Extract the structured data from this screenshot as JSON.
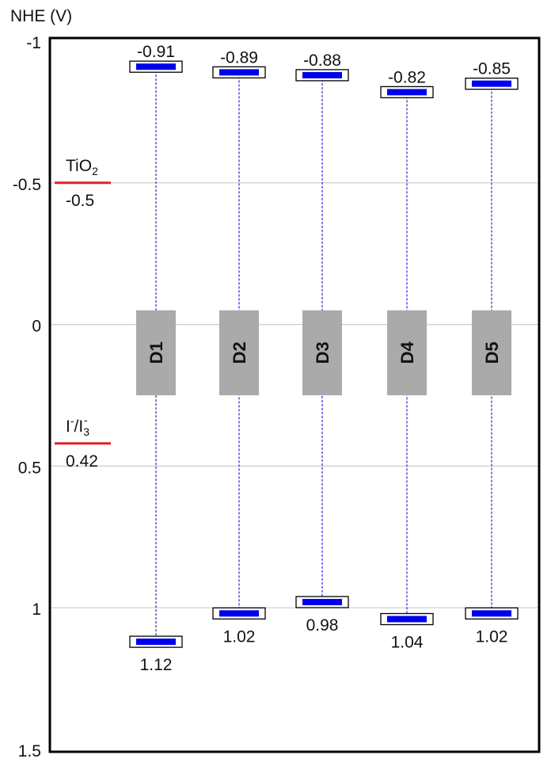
{
  "chart_data": {
    "type": "energy-level diagram",
    "ylabel": "NHE (V)",
    "ylim": [
      -1,
      1.5
    ],
    "y_inverted": true,
    "yticks": [
      "-1",
      "-0.5",
      "0",
      "0.5",
      "1",
      "1.5"
    ],
    "ytick_values": [
      -1,
      -0.5,
      0,
      0.5,
      1,
      1.5
    ],
    "grid": true,
    "reference_levels": [
      {
        "name": "TiO",
        "subscript": "2",
        "value": -0.5,
        "value_label": "-0.5"
      },
      {
        "name": "I",
        "superscript": "-",
        "name_tail": "/I",
        "tail_subscript": "3",
        "tail_superscript": "-",
        "value": 0.42,
        "value_label": "0.42"
      }
    ],
    "dyes": [
      {
        "name": "D1",
        "lumo": -0.91,
        "lumo_label": "-0.91",
        "homo": 1.12,
        "homo_label": "1.12"
      },
      {
        "name": "D2",
        "lumo": -0.89,
        "lumo_label": "-0.89",
        "homo": 1.02,
        "homo_label": "1.02"
      },
      {
        "name": "D3",
        "lumo": -0.88,
        "lumo_label": "-0.88",
        "homo": 0.98,
        "homo_label": "0.98"
      },
      {
        "name": "D4",
        "lumo": -0.82,
        "lumo_label": "-0.82",
        "homo": 1.04,
        "homo_label": "1.04"
      },
      {
        "name": "D5",
        "lumo": -0.85,
        "lumo_label": "-0.85",
        "homo": 1.02,
        "homo_label": "1.02"
      }
    ],
    "colors": {
      "level_bar": "#0000ee",
      "connector": "#2222dd",
      "reference_line": "#e32222",
      "dye_box": "#aaaaaa",
      "grid": "#cccccc"
    }
  }
}
